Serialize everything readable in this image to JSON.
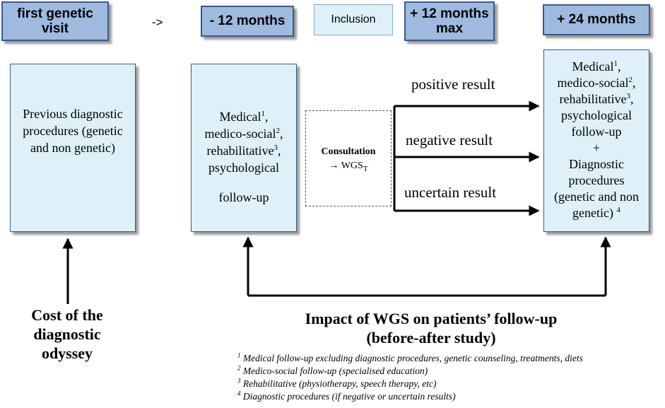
{
  "headers": {
    "first_visit": "first genetic visit",
    "arrow": "->",
    "minus12": "- 12 months",
    "inclusion": "Inclusion",
    "plus12": "+ 12 months max",
    "plus24": "+ 24 months"
  },
  "boxes": {
    "previous": "Previous diagnostic procedures (genetic and non genetic)",
    "followup_medical": "Medical",
    "followup_medical_sup": "1",
    "followup_medico": "medico-social",
    "followup_medico_sup": "2",
    "followup_rehab": "rehabilitative",
    "followup_rehab_sup": "3",
    "followup_psych": "psychological",
    "followup_end": "follow-up",
    "consultation": "Consultation",
    "consult_arrow": "→ WGS",
    "consult_sub": "T",
    "right_medical": "Medical",
    "right_medical_sup": "1",
    "right_medico": "medico-social",
    "right_medico_sup": "2",
    "right_rehab": "rehabilitative",
    "right_rehab_sup": "3",
    "right_psych": "psychological follow-up",
    "right_plus": "+",
    "right_diag": "Diagnostic procedures (genetic and non genetic)",
    "right_diag_sup": "4"
  },
  "results": {
    "positive": "positive result",
    "negative": "negative result",
    "uncertain": "uncertain result"
  },
  "captions": {
    "cost": "Cost of the diagnostic odyssey",
    "impact_line1": "Impact of WGS on patients’ follow-up",
    "impact_line2": "(before-after study)"
  },
  "footnotes": [
    {
      "num": "1",
      "text": "Medical follow-up excluding diagnostic procedures, genetic counseling, treatments, diets"
    },
    {
      "num": "2",
      "text": "Medico-social follow-up (specialised education)"
    },
    {
      "num": "3",
      "text": "Rehabilitative (physiotherapy, speech therapy, etc)"
    },
    {
      "num": "4",
      "text": "Diagnostic procedures (if negative or uncertain results)"
    }
  ]
}
